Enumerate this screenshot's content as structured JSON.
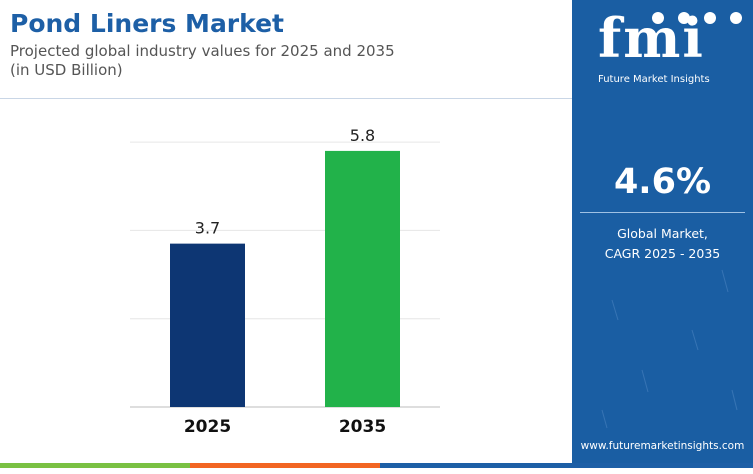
{
  "header": {
    "title": "Pond Liners Market",
    "subtitle_line1": "Projected global industry values for 2025 and 2035",
    "subtitle_line2": "(in USD Billion)"
  },
  "side_panel": {
    "logo_text": "fmi",
    "logo_caption": "Future Market Insights",
    "cagr_value": "4.6%",
    "cagr_label_line1": "Global Market,",
    "cagr_label_line2": "CAGR 2025 - 2035",
    "website": "www.futuremarketinsights.com"
  },
  "colors": {
    "title": "#1d5fa6",
    "panel": "#1a5ea3",
    "bar_2025": "#0d3673",
    "bar_2035": "#22b24a",
    "footer": [
      "#7ac143",
      "#f26522",
      "#1d5fa6"
    ]
  },
  "chart_data": {
    "type": "bar",
    "categories": [
      "2025",
      "2035"
    ],
    "values": [
      3.7,
      5.8
    ],
    "data_labels": [
      "3.7",
      "5.8"
    ],
    "bar_colors": [
      "#0d3673",
      "#22b24a"
    ],
    "ylim": [
      0,
      6.5
    ],
    "grid": true,
    "title": "",
    "xlabel": "",
    "ylabel": ""
  }
}
